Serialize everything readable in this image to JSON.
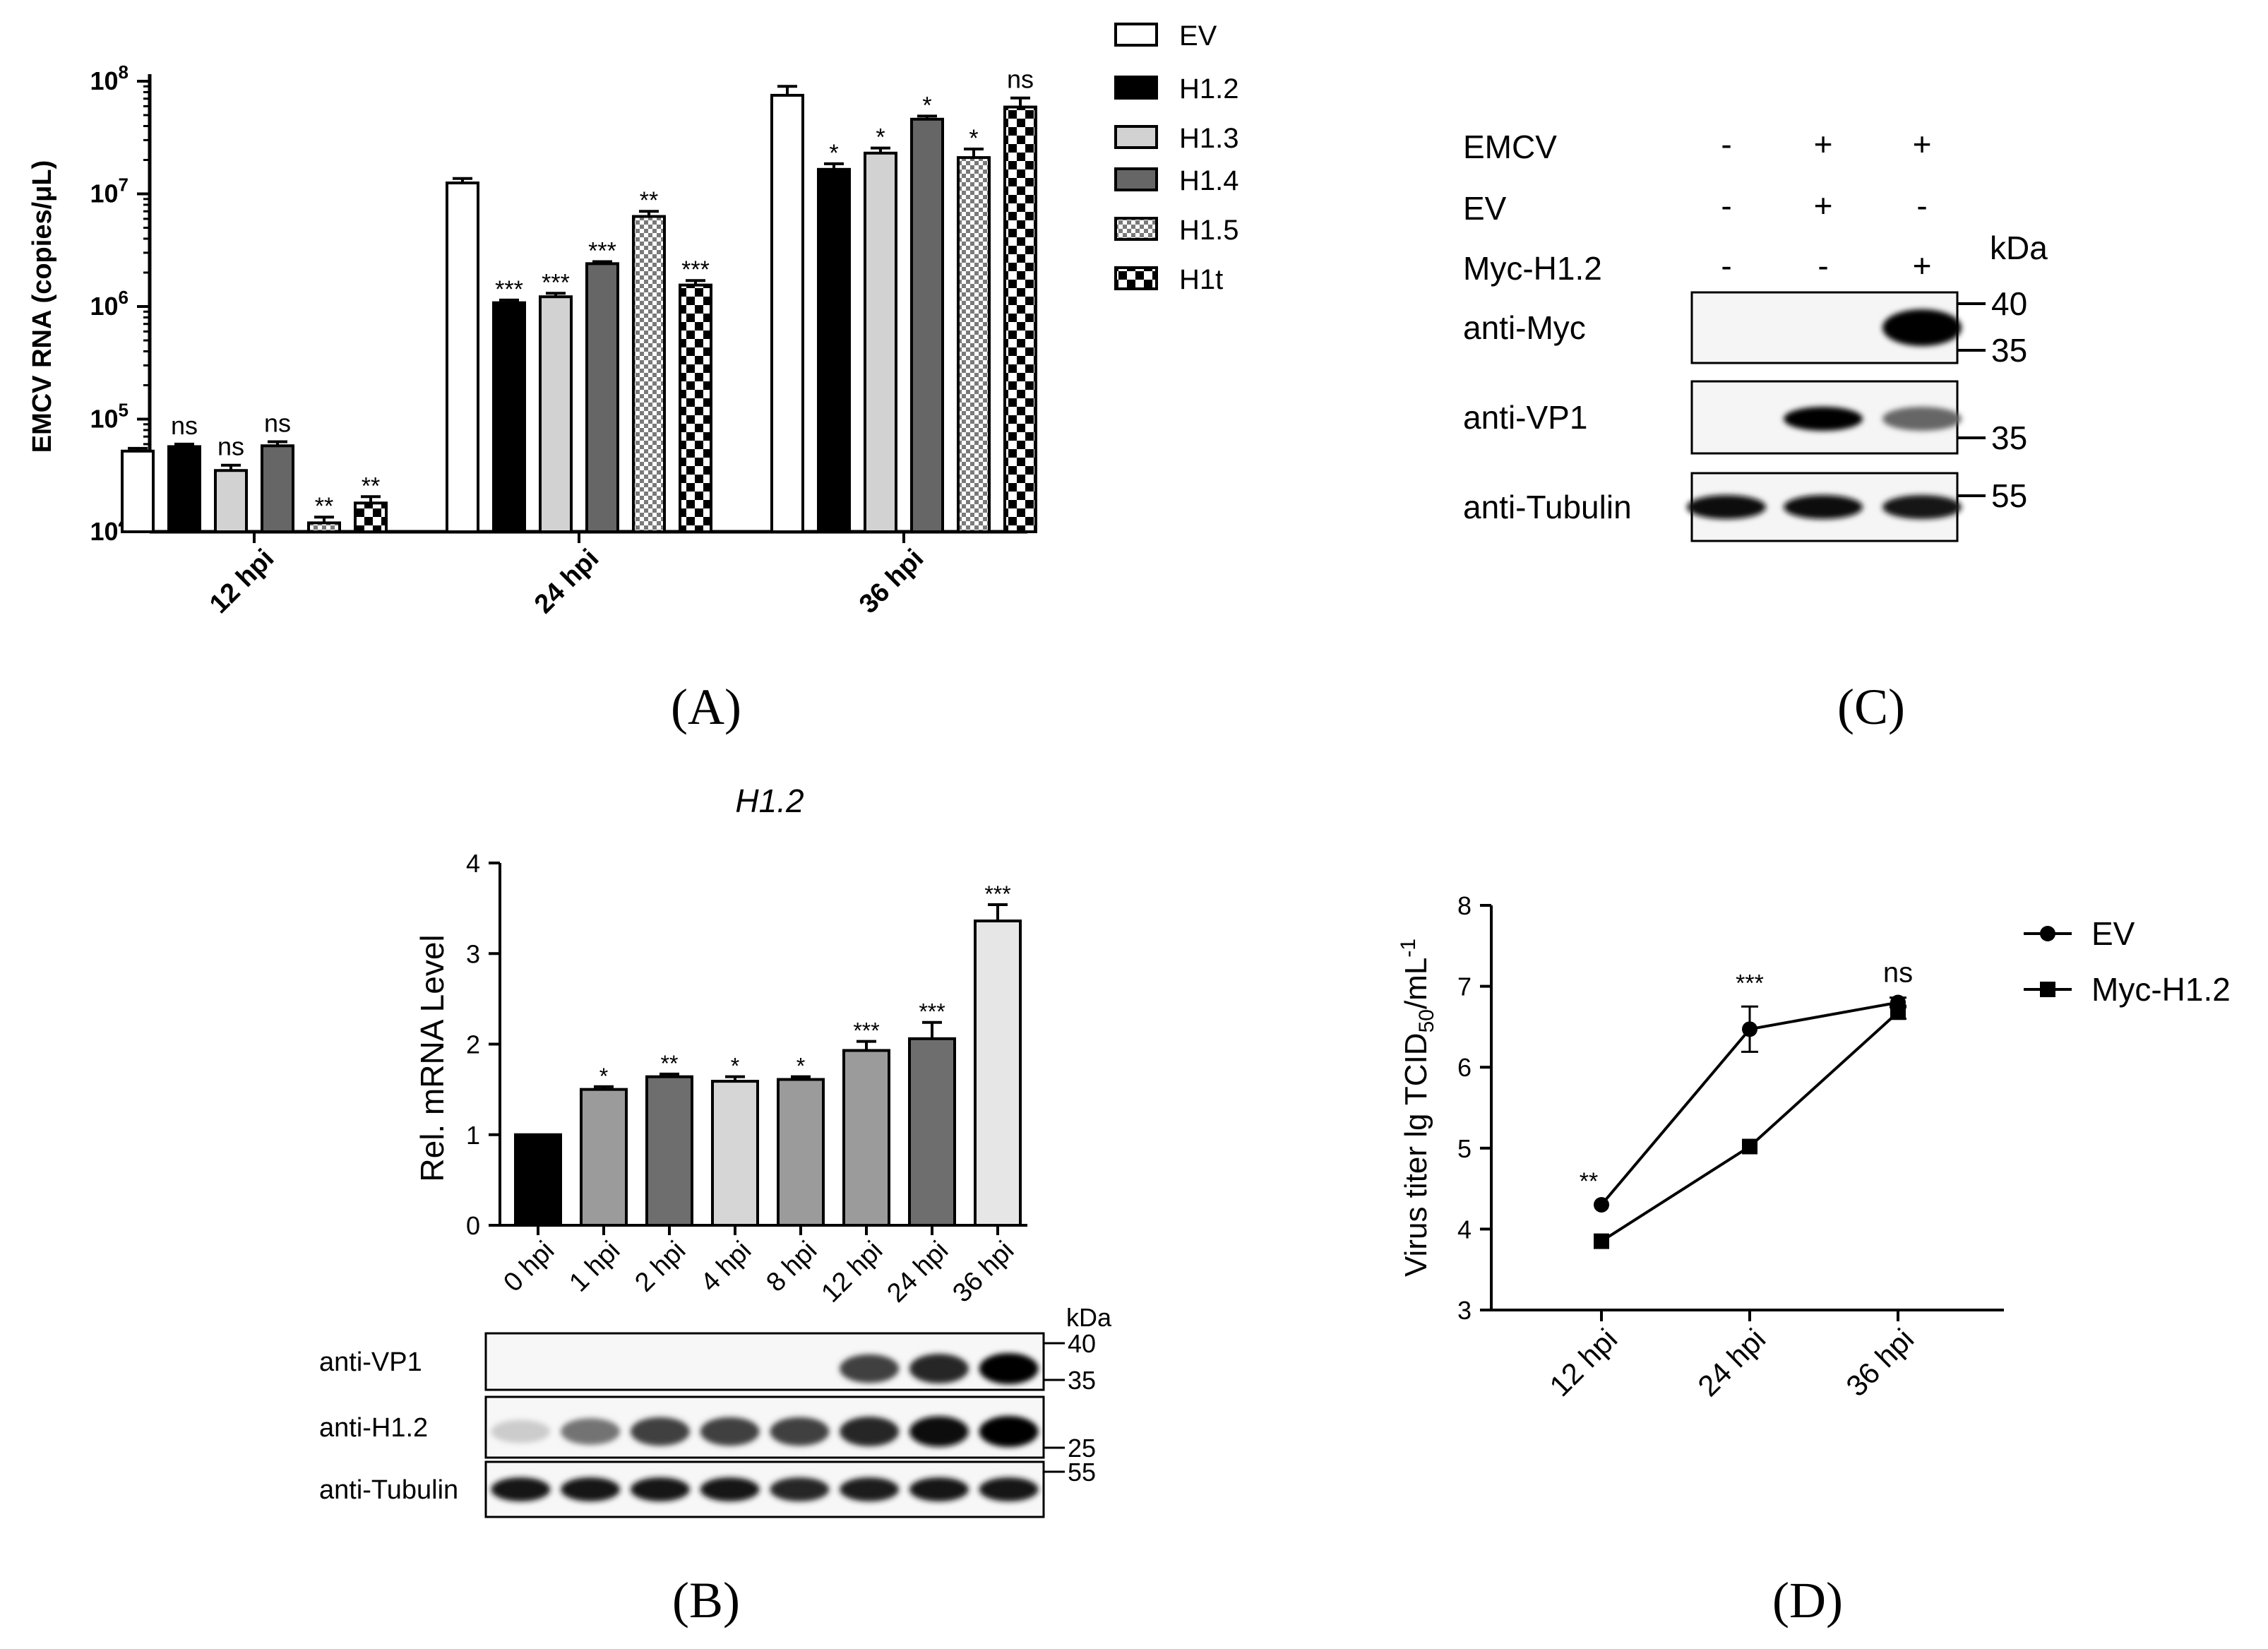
{
  "chart_data": [
    {
      "panel": "(A)",
      "type": "bar",
      "ylabel": "EMCV RNA (copies/μL)",
      "yscale": "log",
      "ylim": [
        10000,
        100000000
      ],
      "yticks": [
        {
          "base": "10",
          "exp": "4",
          "value": 10000
        },
        {
          "base": "10",
          "exp": "5",
          "value": 100000
        },
        {
          "base": "10",
          "exp": "6",
          "value": 1000000
        },
        {
          "base": "10",
          "exp": "7",
          "value": 10000000
        },
        {
          "base": "10",
          "exp": "8",
          "value": 100000000
        }
      ],
      "categories": [
        "12 hpi",
        "24 hpi",
        "36 hpi"
      ],
      "legend_position": "top-right",
      "series": [
        {
          "name": "EV",
          "fill": "#ffffff",
          "pattern": "none",
          "values": [
            52000,
            12500000,
            75000000
          ],
          "errors": [
            3000,
            1200000,
            15000000
          ],
          "sig": [
            "",
            "",
            ""
          ]
        },
        {
          "name": "H1.2",
          "fill": "#000000",
          "pattern": "none",
          "values": [
            57000,
            1080000,
            16500000
          ],
          "errors": [
            3000,
            60000,
            2000000
          ],
          "sig": [
            "ns",
            "***",
            "*"
          ]
        },
        {
          "name": "H1.3",
          "fill": "#d2d2d2",
          "pattern": "none",
          "values": [
            35000,
            1220000,
            23000000
          ],
          "errors": [
            4000,
            90000,
            2500000
          ],
          "sig": [
            "ns",
            "***",
            "*"
          ]
        },
        {
          "name": "H1.4",
          "fill": "#666666",
          "pattern": "none",
          "values": [
            58000,
            2400000,
            46000000
          ],
          "errors": [
            5000,
            100000,
            3000000
          ],
          "sig": [
            "ns",
            "***",
            "*"
          ]
        },
        {
          "name": "H1.5",
          "fill": "#8a8a8a",
          "pattern": "fine-check",
          "values": [
            12000,
            6300000,
            21000000
          ],
          "errors": [
            1500,
            700000,
            4000000
          ],
          "sig": [
            "**",
            "**",
            "*"
          ]
        },
        {
          "name": "H1t",
          "fill": "#ffffff",
          "pattern": "coarse-check",
          "values": [
            18000,
            1550000,
            59000000
          ],
          "errors": [
            2500,
            150000,
            12000000
          ],
          "sig": [
            "**",
            "***",
            "ns"
          ]
        }
      ]
    },
    {
      "panel": "(B)",
      "type": "bar",
      "title": "H1.2",
      "ylabel": "Rel. mRNA Level",
      "ylim": [
        0,
        4
      ],
      "yticks": [
        "0",
        "1",
        "2",
        "3",
        "4"
      ],
      "categories": [
        "0 hpi",
        "1 hpi",
        "2 hpi",
        "4 hpi",
        "8 hpi",
        "12 hpi",
        "24 hpi",
        "36 hpi"
      ],
      "values": [
        1.0,
        1.5,
        1.64,
        1.59,
        1.61,
        1.93,
        2.06,
        3.36
      ],
      "errors": [
        0,
        0.03,
        0.03,
        0.05,
        0.03,
        0.1,
        0.18,
        0.18
      ],
      "fills": [
        "#000000",
        "#9b9b9b",
        "#6e6e6e",
        "#d6d6d6",
        "#9b9b9b",
        "#9b9b9b",
        "#6e6e6e",
        "#e6e6e6"
      ],
      "sig": [
        "",
        "*",
        "**",
        "*",
        "*",
        "***",
        "***",
        "***"
      ],
      "blot": {
        "rows": [
          {
            "label": "anti-VP1",
            "intensity": [
              0,
              0,
              0,
              0,
              0,
              0.75,
              0.85,
              1.0
            ]
          },
          {
            "label": "anti-H1.2",
            "intensity": [
              0.2,
              0.55,
              0.75,
              0.75,
              0.75,
              0.85,
              0.95,
              1.0
            ]
          },
          {
            "label": "anti-Tubulin",
            "intensity": [
              0.92,
              0.92,
              0.92,
              0.9,
              0.85,
              0.88,
              0.92,
              0.92
            ]
          }
        ],
        "unit": "kDa",
        "markers": [
          {
            "row": 0,
            "label": "40",
            "tick": "top"
          },
          {
            "row": 0,
            "label": "35",
            "tick": "bottom"
          },
          {
            "row": 1,
            "label": "25",
            "tick": "bottom"
          },
          {
            "row": 2,
            "label": "55",
            "tick": "top"
          }
        ]
      }
    },
    {
      "panel": "(C)",
      "type": "blot",
      "conditions": [
        {
          "label": "EMCV",
          "values": [
            "-",
            "+",
            "+"
          ]
        },
        {
          "label": "EV",
          "values": [
            "-",
            "+",
            "-"
          ]
        },
        {
          "label": "Myc-H1.2",
          "values": [
            "-",
            "-",
            "+"
          ]
        }
      ],
      "unit": "kDa",
      "rows": [
        {
          "label": "anti-Myc",
          "intensity": [
            0,
            0,
            1.0
          ],
          "markers": [
            "40",
            "35"
          ]
        },
        {
          "label": "anti-VP1",
          "intensity": [
            0,
            1.0,
            0.6
          ],
          "markers": [
            "35"
          ]
        },
        {
          "label": "anti-Tubulin",
          "intensity": [
            0.95,
            0.95,
            0.92
          ],
          "markers": [
            "55"
          ]
        }
      ]
    },
    {
      "panel": "(D)",
      "type": "line",
      "ylabel": "Virus titer lg TCID50/mL-1",
      "ylabel_parts": {
        "pre": "Virus titer lg TCID",
        "sub": "50",
        "mid": "/mL",
        "sup": "-1"
      },
      "ylim": [
        3,
        8
      ],
      "yticks": [
        "3",
        "4",
        "5",
        "6",
        "7",
        "8"
      ],
      "categories": [
        "12 hpi",
        "24 hpi",
        "36 hpi"
      ],
      "legend_position": "right",
      "series": [
        {
          "name": "EV",
          "marker": "circle",
          "values": [
            4.3,
            6.47,
            6.8
          ],
          "errors": [
            0,
            0.28,
            0.06
          ]
        },
        {
          "name": "Myc-H1.2",
          "marker": "square",
          "values": [
            3.85,
            5.02,
            6.68
          ],
          "errors": [
            0,
            0,
            0.08
          ]
        }
      ],
      "sig": [
        "**",
        "***",
        "ns"
      ]
    }
  ]
}
